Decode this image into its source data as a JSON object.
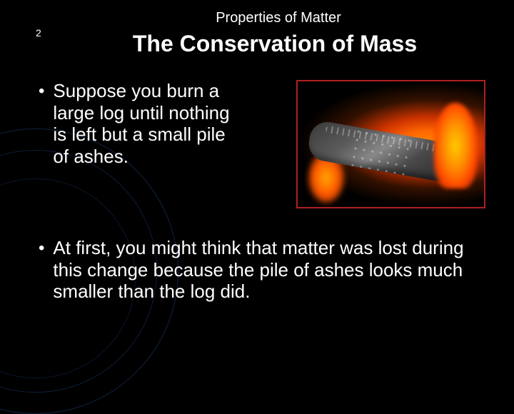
{
  "header": {
    "topic": "Properties of Matter",
    "section_number": "2",
    "title": "The Conservation of Mass"
  },
  "bullets": [
    {
      "text": "Suppose you burn a large log until nothing is left but a small pile of ashes."
    },
    {
      "text": "At first, you might think that matter was lost during this change because the pile of ashes looks much smaller than the log did."
    }
  ],
  "image": {
    "description": "burning-log",
    "border_color": "#b02020"
  },
  "colors": {
    "background": "#000000",
    "text": "#ffffff",
    "decoration": "#1a3a6e"
  },
  "typography": {
    "header_size": 20,
    "title_size": 32,
    "body_size": 26
  }
}
